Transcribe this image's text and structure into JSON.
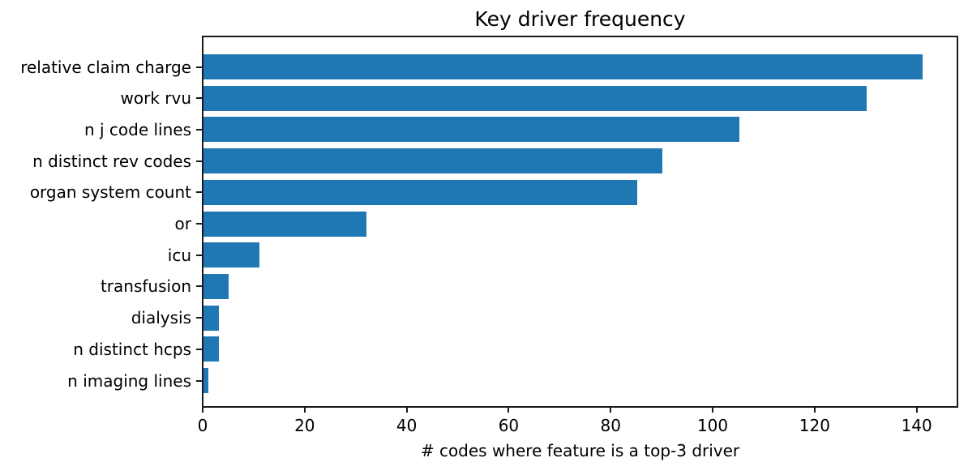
{
  "chart_data": {
    "type": "bar",
    "orientation": "horizontal",
    "title": "Key driver frequency",
    "xlabel": "# codes where feature is a top-3 driver",
    "ylabel": "",
    "categories": [
      "relative claim charge",
      "work rvu",
      "n j code lines",
      "n distinct rev codes",
      "organ system count",
      "or",
      "icu",
      "transfusion",
      "dialysis",
      "n distinct hcps",
      "n imaging lines"
    ],
    "values": [
      141,
      130,
      105,
      90,
      85,
      32,
      11,
      5,
      3,
      3,
      1
    ],
    "xlim": [
      0,
      148
    ],
    "xticks": [
      0,
      20,
      40,
      60,
      80,
      100,
      120,
      140
    ],
    "bar_color": "#1f77b4",
    "axis_color": "#1a1a1a",
    "grid": false,
    "legend": null
  }
}
